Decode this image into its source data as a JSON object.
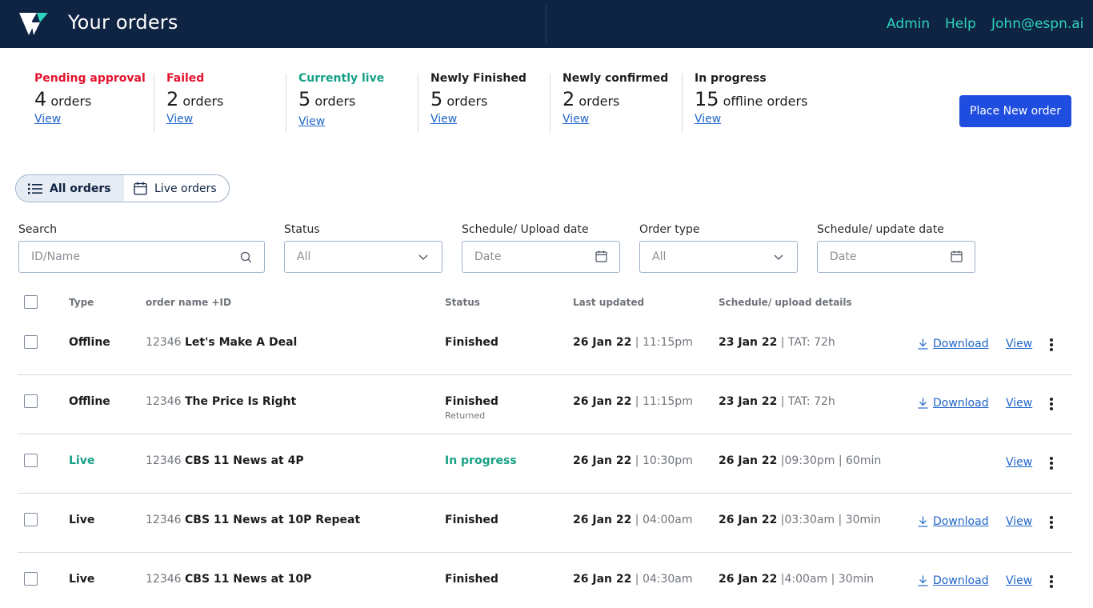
{
  "header": {
    "title": "Your orders",
    "links": [
      "Admin",
      "Help",
      "John@espn.ai"
    ]
  },
  "summary": [
    {
      "label": "Pending approval",
      "count": "4",
      "unit": "orders",
      "view": "View",
      "color": "#e3122e"
    },
    {
      "label": "Failed",
      "count": "2",
      "unit": "orders",
      "view": "View",
      "color": "#e3122e"
    },
    {
      "label": "Currently live",
      "count": "5",
      "unit": "orders",
      "view": "View",
      "color": "#16a085"
    },
    {
      "label": "Newly Finished",
      "count": "5",
      "unit": "orders",
      "view": "View",
      "color": "#1d1d1f"
    },
    {
      "label": "Newly confirmed",
      "count": "2",
      "unit": "orders",
      "view": "View",
      "color": "#1d1d1f"
    },
    {
      "label": "In progress",
      "count": "15",
      "unit": "offline orders",
      "view": "View",
      "color": "#1d1d1f"
    }
  ],
  "place_order_label": "Place New order",
  "tabs": {
    "all": "All orders",
    "live": "Live orders"
  },
  "filters": {
    "search": {
      "label": "Search",
      "placeholder": "ID/Name"
    },
    "status": {
      "label": "Status",
      "value": "All"
    },
    "schedule_upload": {
      "label": "Schedule/ Upload date",
      "placeholder": "Date"
    },
    "order_type": {
      "label": "Order type",
      "value": "All"
    },
    "schedule_update": {
      "label": "Schedule/ update date",
      "placeholder": "Date"
    }
  },
  "table": {
    "headers": {
      "type": "Type",
      "name": "order name +ID",
      "status": "Status",
      "updated": "Last updated",
      "schedule": "Schedule/ upload details"
    },
    "download_label": "Download",
    "view_label": "View",
    "rows": [
      {
        "type": "Offline",
        "id": "12346",
        "name": "Let's Make A Deal",
        "status": "Finished",
        "substatus": "",
        "updated_date": "26 Jan 22",
        "updated_time": "| 11:15pm",
        "sched_date": "23 Jan 22",
        "sched_detail": "| TAT: 72h",
        "download": true,
        "live": false
      },
      {
        "type": "Offline",
        "id": "12346",
        "name": "The Price Is Right",
        "status": "Finished",
        "substatus": "Returned",
        "updated_date": "26 Jan 22",
        "updated_time": "| 11:15pm",
        "sched_date": "23 Jan 22",
        "sched_detail": "| TAT: 72h",
        "download": true,
        "live": false
      },
      {
        "type": "Live",
        "id": "12346",
        "name": "CBS 11 News at 4P",
        "status": "In progress",
        "substatus": "",
        "updated_date": "26 Jan 22",
        "updated_time": "| 10:30pm",
        "sched_date": "26 Jan 22",
        "sched_detail": "|09:30pm | 60min",
        "download": false,
        "live": true
      },
      {
        "type": "Live",
        "id": "12346",
        "name": "CBS 11 News at 10P Repeat",
        "status": "Finished",
        "substatus": "",
        "updated_date": "26 Jan 22",
        "updated_time": "| 04:00am",
        "sched_date": "26 Jan 22",
        "sched_detail": "|03:30am | 30min",
        "download": true,
        "live": false
      },
      {
        "type": "Live",
        "id": "12346",
        "name": "CBS 11 News at 10P",
        "status": "Finished",
        "substatus": "",
        "updated_date": "26 Jan 22",
        "updated_time": "| 04:30am",
        "sched_date": "26 Jan 22",
        "sched_detail": "|4:00am | 30min",
        "download": true,
        "live": false
      }
    ]
  }
}
